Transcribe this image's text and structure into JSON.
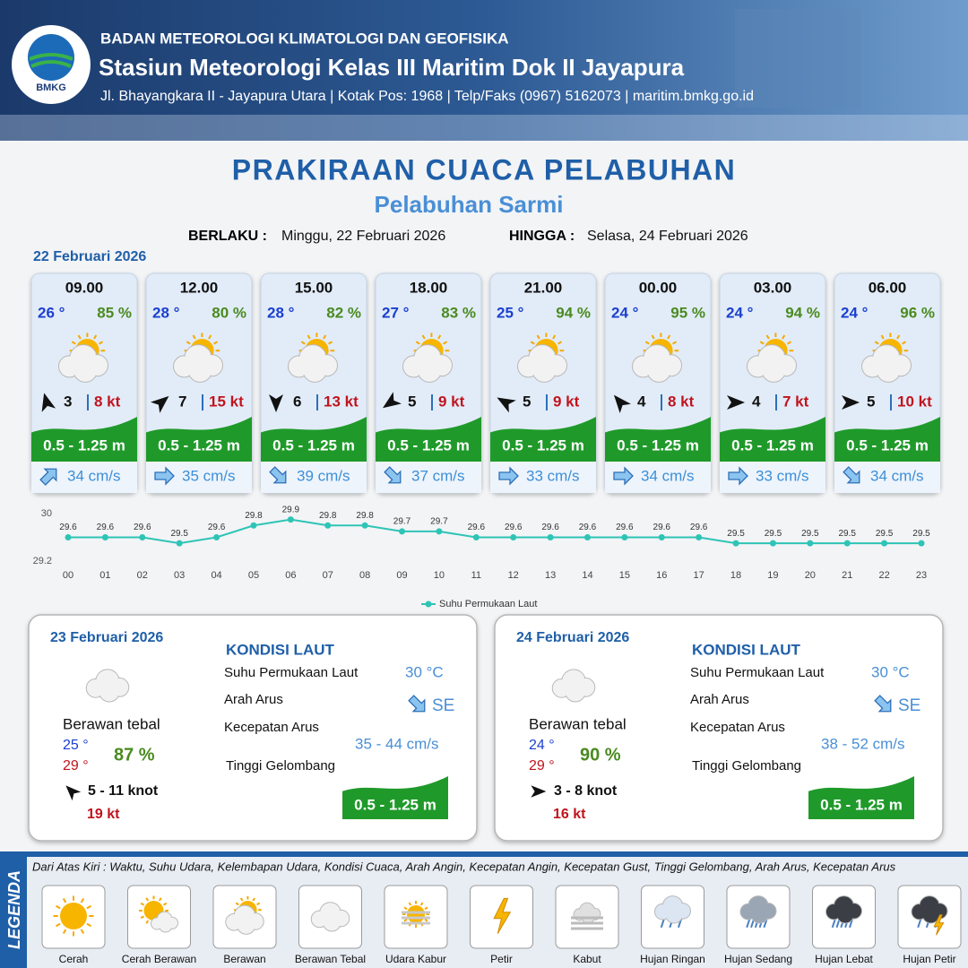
{
  "header": {
    "logo_text": "BMKG",
    "agency": "BADAN METEOROLOGI KLIMATOLOGI DAN GEOFISIKA",
    "station": "Stasiun Meteorologi Kelas III Maritim Dok II Jayapura",
    "address": "Jl. Bhayangkara II - Jayapura Utara | Kotak Pos: 1968 | Telp/Faks (0967) 5162073 | maritim.bmkg.go.id"
  },
  "title": "PRAKIRAAN CUACA PELABUHAN",
  "subtitle": "Pelabuhan Sarmi",
  "validity": {
    "from_label": "BERLAKU :",
    "from": "Minggu, 22 Februari 2026",
    "to_label": "HINGGA :",
    "to": "Selasa, 24 Februari 2026"
  },
  "day1": {
    "date": "22 Februari 2026",
    "slots": [
      {
        "time": "09.00",
        "temp": "26 °",
        "humidity": "85 %",
        "wind": "3",
        "gust": "8 kt",
        "wave": "0.5 - 1.25 m",
        "current": "34 cm/s"
      },
      {
        "time": "12.00",
        "temp": "28 °",
        "humidity": "80 %",
        "wind": "7",
        "gust": "15 kt",
        "wave": "0.5 - 1.25 m",
        "current": "35 cm/s"
      },
      {
        "time": "15.00",
        "temp": "28 °",
        "humidity": "82 %",
        "wind": "6",
        "gust": "13 kt",
        "wave": "0.5 - 1.25 m",
        "current": "39 cm/s"
      },
      {
        "time": "18.00",
        "temp": "27 °",
        "humidity": "83 %",
        "wind": "5",
        "gust": "9 kt",
        "wave": "0.5 - 1.25 m",
        "current": "37 cm/s"
      },
      {
        "time": "21.00",
        "temp": "25 °",
        "humidity": "94 %",
        "wind": "5",
        "gust": "9 kt",
        "wave": "0.5 - 1.25 m",
        "current": "33 cm/s"
      },
      {
        "time": "00.00",
        "temp": "24 °",
        "humidity": "95 %",
        "wind": "4",
        "gust": "8 kt",
        "wave": "0.5 - 1.25 m",
        "current": "34 cm/s"
      },
      {
        "time": "03.00",
        "temp": "24 °",
        "humidity": "94 %",
        "wind": "4",
        "gust": "7 kt",
        "wave": "0.5 - 1.25 m",
        "current": "33 cm/s"
      },
      {
        "time": "06.00",
        "temp": "24 °",
        "humidity": "96 %",
        "wind": "5",
        "gust": "10 kt",
        "wave": "0.5 - 1.25 m",
        "current": "34 cm/s"
      }
    ]
  },
  "chart_data": {
    "type": "line",
    "categories": [
      "00",
      "01",
      "02",
      "03",
      "04",
      "05",
      "06",
      "07",
      "08",
      "09",
      "10",
      "11",
      "12",
      "13",
      "14",
      "15",
      "16",
      "17",
      "18",
      "19",
      "20",
      "21",
      "22",
      "23"
    ],
    "series": [
      {
        "name": "Suhu Permukaan Laut",
        "color": "#2ec4b6",
        "values": [
          29.6,
          29.6,
          29.6,
          29.5,
          29.6,
          29.8,
          29.9,
          29.8,
          29.8,
          29.7,
          29.7,
          29.6,
          29.6,
          29.6,
          29.6,
          29.6,
          29.6,
          29.6,
          29.5,
          29.5,
          29.5,
          29.5,
          29.5,
          29.5
        ]
      }
    ],
    "ylim": [
      29.2,
      30
    ],
    "yticks": [
      29.2,
      30
    ],
    "grid": false
  },
  "days": [
    {
      "date": "23 Februari 2026",
      "condition": "Berawan tebal",
      "temp_min": "25 °",
      "temp_max": "29 °",
      "humidity": "87 %",
      "wind": "5 - 11 knot",
      "gust": "19 kt",
      "sea_title": "KONDISI LAUT",
      "sst_label": "Suhu Permukaan Laut",
      "sst": "30 °C",
      "current_dir_label": "Arah Arus",
      "current_dir": "SE",
      "current_speed_label": "Kecepatan Arus",
      "current_speed": "35 - 44 cm/s",
      "wave_label": "Tinggi Gelombang",
      "wave": "0.5 - 1.25 m"
    },
    {
      "date": "24 Februari 2026",
      "condition": "Berawan tebal",
      "temp_min": "24 °",
      "temp_max": "29 °",
      "humidity": "90 %",
      "wind": "3 - 8 knot",
      "gust": "16 kt",
      "sea_title": "KONDISI LAUT",
      "sst_label": "Suhu Permukaan Laut",
      "sst": "30 °C",
      "current_dir_label": "Arah Arus",
      "current_dir": "SE",
      "current_speed_label": "Kecepatan Arus",
      "current_speed": "38 - 52 cm/s",
      "wave_label": "Tinggi Gelombang",
      "wave": "0.5 - 1.25 m"
    }
  ],
  "legend": {
    "title": "LEGENDA",
    "description": "Dari Atas Kiri : Waktu, Suhu Udara, Kelembapan Udara, Kondisi Cuaca, Arah Angin, Kecepatan Angin, Kecepatan Gust, Tinggi Gelombang, Arah Arus, Kecepatan Arus",
    "items": [
      "Cerah",
      "Cerah Berawan",
      "Berawan",
      "Berawan Tebal",
      "Udara Kabur",
      "Petir",
      "Kabut",
      "Hujan Ringan",
      "Hujan Sedang",
      "Hujan Lebat",
      "Hujan Petir"
    ]
  }
}
